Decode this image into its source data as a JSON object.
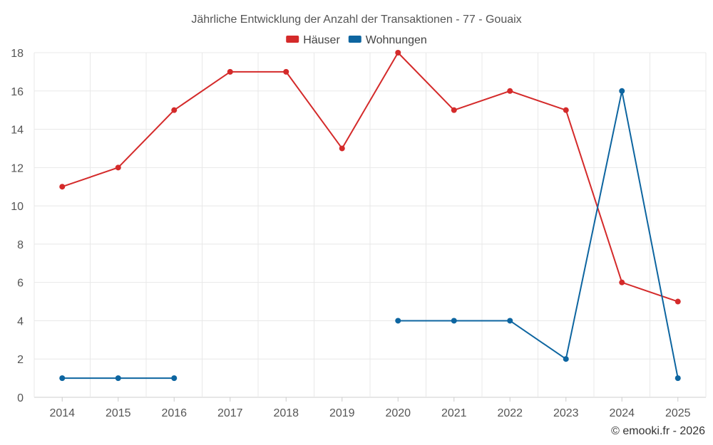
{
  "chart_data": {
    "type": "line",
    "title": "Jährliche Entwicklung der Anzahl der Transaktionen - 77 - Gouaix",
    "categories": [
      "2014",
      "2015",
      "2016",
      "2017",
      "2018",
      "2019",
      "2020",
      "2021",
      "2022",
      "2023",
      "2024",
      "2025"
    ],
    "ylim": [
      0,
      18
    ],
    "yticks": [
      0,
      2,
      4,
      6,
      8,
      10,
      12,
      14,
      16,
      18
    ],
    "xlabel": "",
    "ylabel": "",
    "grid": true,
    "legend_position": "top-center",
    "series": [
      {
        "name": "Häuser",
        "color": "#d42a2a",
        "values": [
          11,
          12,
          15,
          17,
          17,
          13,
          18,
          15,
          16,
          15,
          6,
          5
        ]
      },
      {
        "name": "Wohnungen",
        "color": "#0d65a0",
        "values": [
          1,
          1,
          1,
          null,
          null,
          null,
          4,
          4,
          4,
          2,
          16,
          1
        ]
      }
    ]
  },
  "credit": "© emooki.fr - 2026"
}
